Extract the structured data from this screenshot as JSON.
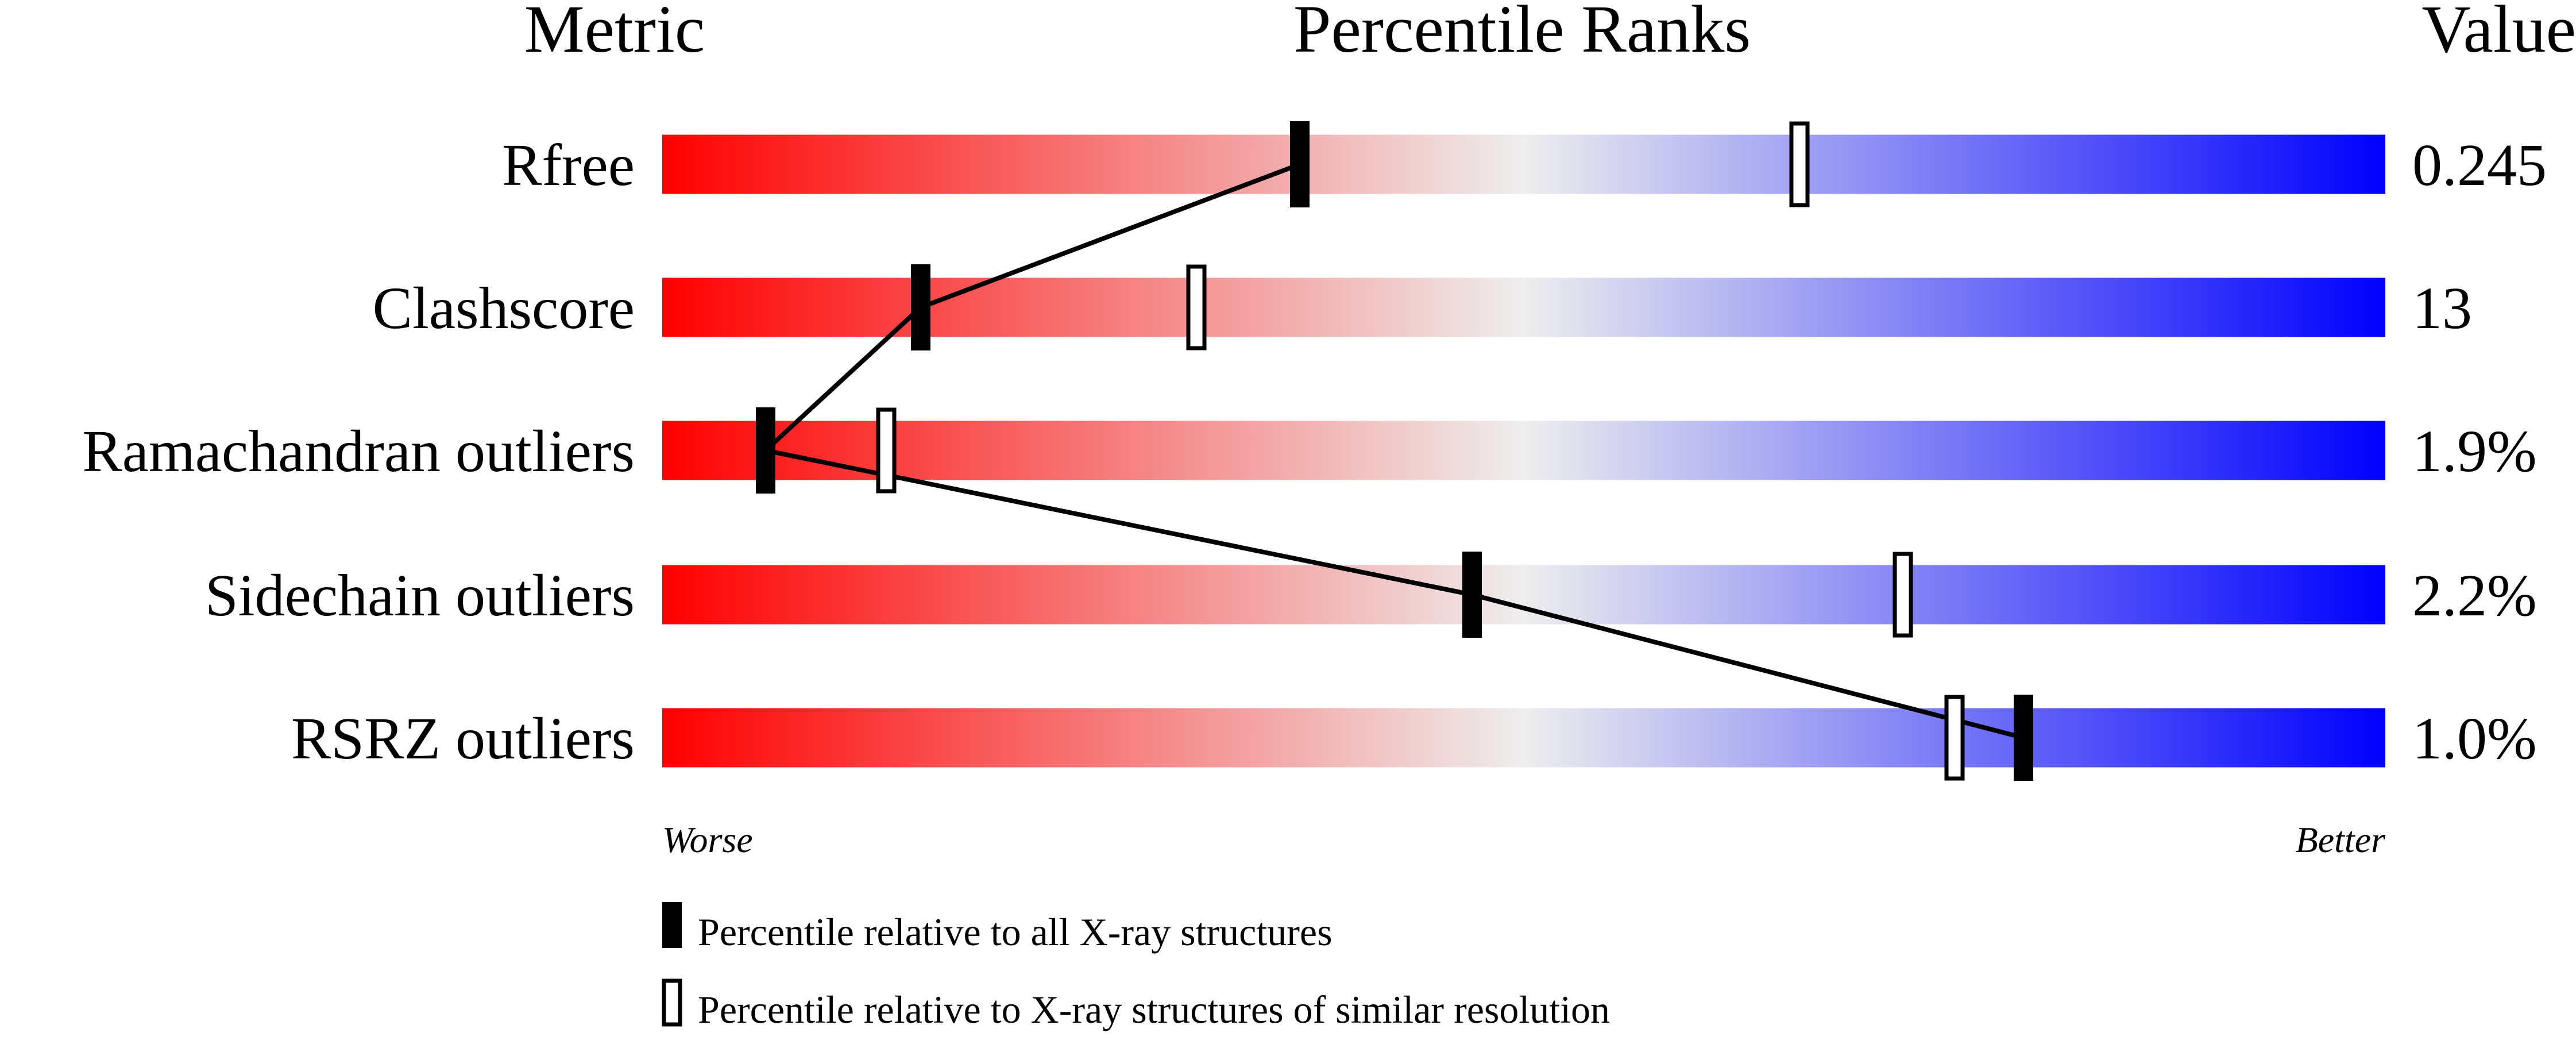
{
  "chart_data": {
    "type": "percentile-bar",
    "headers": {
      "metric": "Metric",
      "ranks": "Percentile Ranks",
      "value": "Value"
    },
    "xlim": [
      0,
      100
    ],
    "axis_labels": {
      "left": "Worse",
      "right": "Better"
    },
    "gradient_colors": [
      "#ff0000",
      "#eeeeee",
      "#0000ff"
    ],
    "rows": [
      {
        "metric": "Rfree",
        "value": "0.245",
        "percentile_all": 37,
        "percentile_similar": 66
      },
      {
        "metric": "Clashscore",
        "value": "13",
        "percentile_all": 15,
        "percentile_similar": 31
      },
      {
        "metric": "Ramachandran outliers",
        "value": "1.9%",
        "percentile_all": 6,
        "percentile_similar": 13
      },
      {
        "metric": "Sidechain outliers",
        "value": "2.2%",
        "percentile_all": 47,
        "percentile_similar": 72
      },
      {
        "metric": "RSRZ outliers",
        "value": "1.0%",
        "percentile_all": 79,
        "percentile_similar": 75
      }
    ],
    "legend": {
      "all": "Percentile relative to all X-ray structures",
      "similar": "Percentile relative to X-ray structures of similar resolution"
    }
  }
}
